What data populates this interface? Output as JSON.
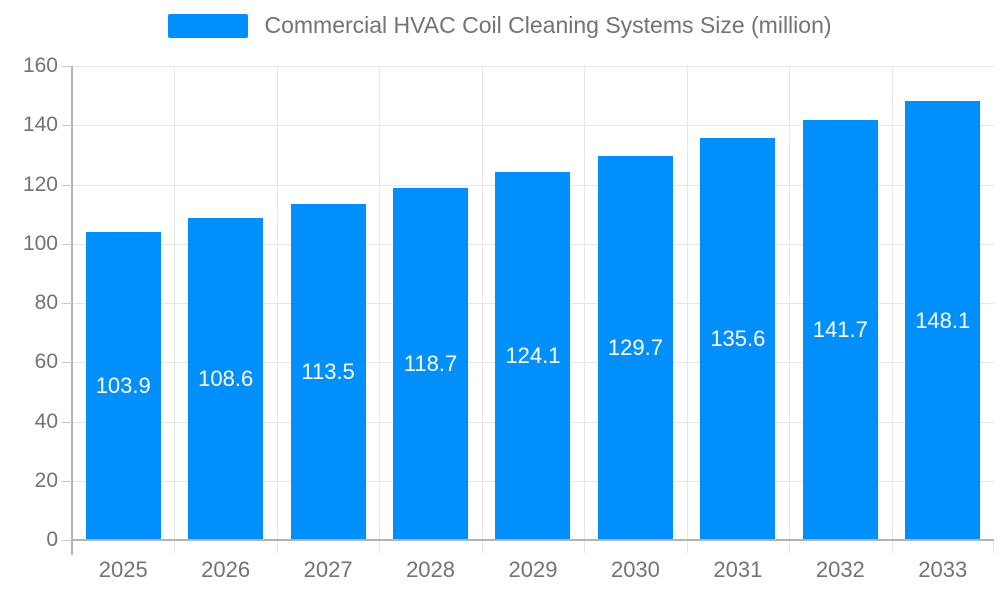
{
  "legend": {
    "label": "Commercial HVAC Coil Cleaning Systems Size (million)"
  },
  "chart_data": {
    "type": "bar",
    "title": "Commercial HVAC Coil Cleaning Systems Size (million)",
    "series": [
      {
        "name": "Commercial HVAC Coil Cleaning Systems Size (million)",
        "values": [
          103.9,
          108.6,
          113.5,
          118.7,
          124.1,
          129.7,
          135.6,
          141.7,
          148.1
        ]
      }
    ],
    "categories": [
      "2025",
      "2026",
      "2027",
      "2028",
      "2029",
      "2030",
      "2031",
      "2032",
      "2033"
    ],
    "xlabel": "",
    "ylabel": "",
    "ylim": [
      0,
      160
    ],
    "y_ticks": [
      0,
      20,
      40,
      60,
      80,
      100,
      120,
      140,
      160
    ],
    "grid": true,
    "legend_position": "top",
    "data_labels": "centered-in-bar",
    "colors": {
      "bar": "#008FFB",
      "grid": "#e7e7e7",
      "axis_line": "#b3b3b3",
      "tick": "#c9c9c9",
      "axis_text": "#737373",
      "data_label_text": "#ffffff",
      "background": "#ffffff"
    }
  }
}
